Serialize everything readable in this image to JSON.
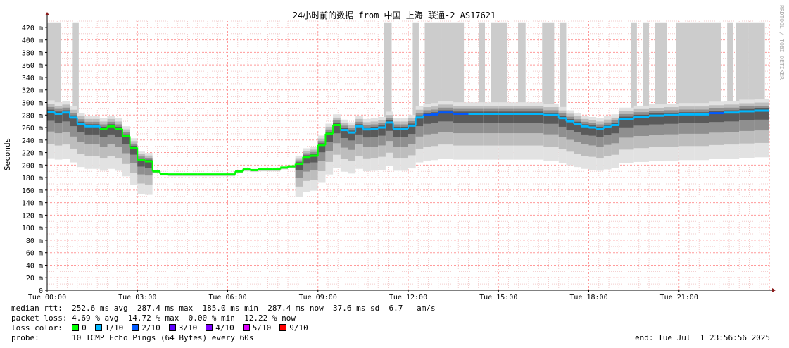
{
  "chart_data": {
    "type": "line",
    "title": "24小时前的数据 from 中国 上海 联通-2 AS17621",
    "ylabel": "Seconds",
    "watermark": "RRDTOOL / TOBI OETIKER",
    "ylim": [
      0,
      430
    ],
    "y_ticks": [
      "0",
      "20 m",
      "40 m",
      "60 m",
      "80 m",
      "100 m",
      "120 m",
      "140 m",
      "160 m",
      "180 m",
      "200 m",
      "220 m",
      "240 m",
      "260 m",
      "280 m",
      "300 m",
      "320 m",
      "340 m",
      "360 m",
      "380 m",
      "400 m",
      "420 m"
    ],
    "y_tick_values": [
      0,
      20,
      40,
      60,
      80,
      100,
      120,
      140,
      160,
      180,
      200,
      220,
      240,
      260,
      280,
      300,
      320,
      340,
      360,
      380,
      400,
      420
    ],
    "xlim": [
      0,
      24
    ],
    "x_ticks": [
      "Tue 00:00",
      "Tue 03:00",
      "Tue 06:00",
      "Tue 09:00",
      "Tue 12:00",
      "Tue 15:00",
      "Tue 18:00",
      "Tue 21:00"
    ],
    "x_tick_hours": [
      0,
      3,
      6,
      9,
      12,
      15,
      18,
      21
    ],
    "grid": true,
    "median_series": {
      "name": "median rtt",
      "x": [
        0,
        0.25,
        0.5,
        0.75,
        1,
        1.25,
        1.5,
        1.75,
        2,
        2.25,
        2.5,
        2.75,
        3,
        3.25,
        3.5,
        3.75,
        4,
        4.5,
        5,
        5.5,
        6,
        6.25,
        6.5,
        6.75,
        7,
        7.5,
        7.75,
        8,
        8.25,
        8.5,
        8.75,
        9,
        9.25,
        9.5,
        9.75,
        10,
        10.25,
        10.5,
        10.75,
        11,
        11.25,
        11.5,
        11.75,
        12,
        12.25,
        12.5,
        12.75,
        13,
        13.5,
        14,
        14.5,
        15,
        15.5,
        16,
        16.5,
        17,
        17.25,
        17.5,
        17.75,
        18,
        18.25,
        18.5,
        18.75,
        19,
        19.5,
        20,
        20.5,
        21,
        21.5,
        22,
        22.5,
        23,
        23.5,
        24
      ],
      "y": [
        285,
        282,
        284,
        276,
        266,
        262,
        262,
        258,
        262,
        258,
        246,
        228,
        208,
        206,
        190,
        186,
        185,
        185,
        185,
        185,
        185,
        190,
        193,
        192,
        193,
        193,
        196,
        198,
        202,
        213,
        215,
        232,
        250,
        264,
        256,
        252,
        262,
        257,
        258,
        260,
        268,
        258,
        258,
        263,
        276,
        280,
        281,
        284,
        282,
        282,
        282,
        282,
        282,
        282,
        280,
        275,
        270,
        266,
        262,
        260,
        258,
        261,
        264,
        274,
        277,
        279,
        280,
        281,
        281,
        283,
        284,
        286,
        287,
        287
      ],
      "loss": [
        1,
        1,
        1,
        1,
        1,
        1,
        1,
        0,
        0,
        0,
        0,
        0,
        0,
        0,
        0,
        0,
        0,
        0,
        0,
        0,
        0,
        0,
        0,
        0,
        0,
        0,
        0,
        0,
        0,
        0,
        0,
        0,
        0,
        0,
        1,
        1,
        1,
        1,
        1,
        1,
        1,
        1,
        1,
        1,
        1,
        2,
        2,
        2,
        2,
        1,
        1,
        1,
        1,
        1,
        1,
        1,
        1,
        1,
        1,
        1,
        1,
        1,
        1,
        1,
        1,
        1,
        1,
        1,
        1,
        2,
        1,
        1,
        1,
        2
      ],
      "loss_points": [
        {
          "x": 0.3,
          "loss": 1
        },
        {
          "x": 10.9,
          "loss": 1
        },
        {
          "x": 12.5,
          "loss": 2
        },
        {
          "x": 14.8,
          "loss": 1
        },
        {
          "x": 16.7,
          "loss": 1
        },
        {
          "x": 17.3,
          "loss": 1
        },
        {
          "x": 18.7,
          "loss": 1
        },
        {
          "x": 20.1,
          "loss": 1
        },
        {
          "x": 20.7,
          "loss": 1
        },
        {
          "x": 21.6,
          "loss": 1
        },
        {
          "x": 22.5,
          "loss": 1
        },
        {
          "x": 23.7,
          "loss": 1
        }
      ]
    },
    "loss_spikes_hours": [
      [
        0,
        0.45
      ],
      [
        0.85,
        1.05
      ],
      [
        11.2,
        11.45
      ],
      [
        12.15,
        12.35
      ],
      [
        12.55,
        13.1
      ],
      [
        13.1,
        13.85
      ],
      [
        14.35,
        14.55
      ],
      [
        14.75,
        15.3
      ],
      [
        15.65,
        15.9
      ],
      [
        16.45,
        16.85
      ],
      [
        17.05,
        17.25
      ],
      [
        19.4,
        19.6
      ],
      [
        19.8,
        20
      ],
      [
        20.2,
        20.6
      ],
      [
        20.9,
        22.4
      ],
      [
        22.6,
        22.8
      ],
      [
        22.9,
        23.3
      ],
      [
        23.3,
        23.85
      ]
    ],
    "loss_colors": [
      "#00ff00",
      "#00b8ff",
      "#0059ff",
      "#5e00ff",
      "#7e00ff",
      "#dd00ff",
      "#ff0000"
    ]
  },
  "stats": {
    "median_label": "median rtt:",
    "median_values": "252.6 ms avg  287.4 ms max  185.0 ms min  287.4 ms now  37.6 ms sd  6.7   am/s",
    "loss_label": "packet loss:",
    "loss_values": "4.69 % avg  14.72 % max  0.00 % min  12.22 % now",
    "color_label": "loss color:",
    "legend": [
      {
        "label": "0",
        "color": "#00ff00"
      },
      {
        "label": "1/10",
        "color": "#00b8ff"
      },
      {
        "label": "2/10",
        "color": "#0059ff"
      },
      {
        "label": "3/10",
        "color": "#5e00ff"
      },
      {
        "label": "4/10",
        "color": "#7e00ff"
      },
      {
        "label": "5/10",
        "color": "#dd00ff"
      },
      {
        "label": "9/10",
        "color": "#ff0000"
      }
    ],
    "probe_label": "probe:",
    "probe_value": "10 ICMP Echo Pings (64 Bytes) every 60s",
    "end_text": "end: Tue Jul  1 23:56:56 2025"
  }
}
